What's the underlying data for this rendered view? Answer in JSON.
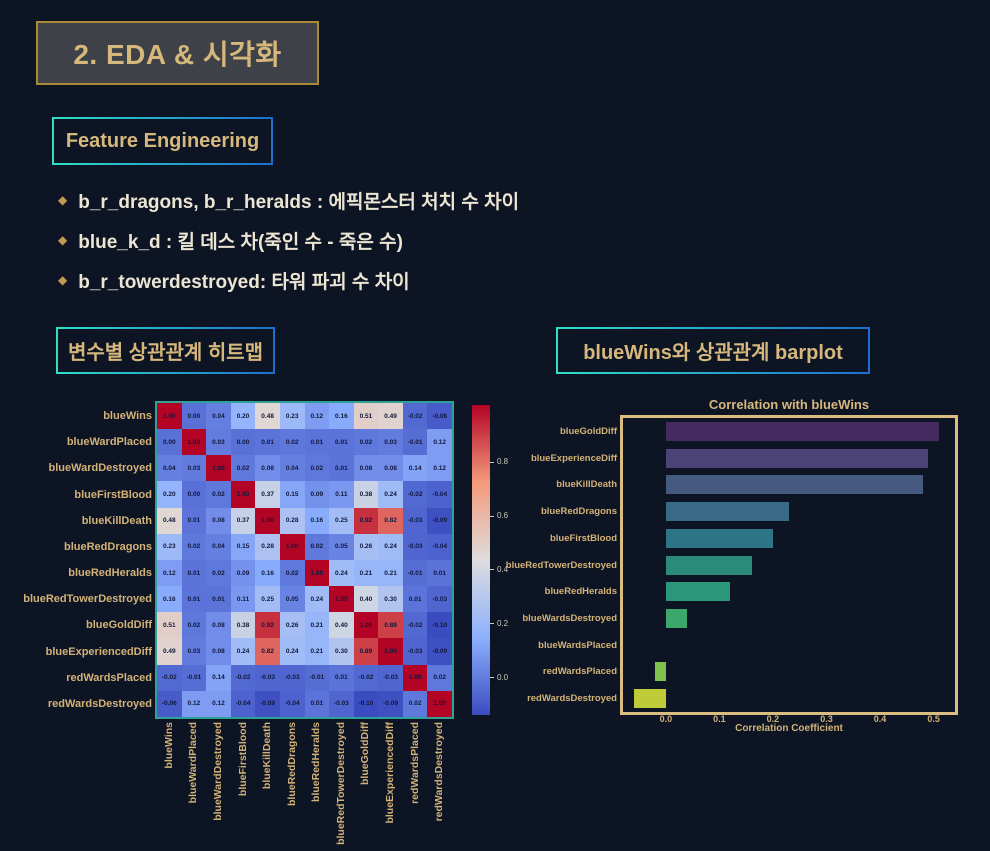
{
  "colors": {
    "background": "#0d1524",
    "gold_text": "#d6b77c",
    "cream_text": "#ece5d3",
    "teal_accent": "#2fe0c6",
    "blue_accent": "#1e6fd0",
    "title_box_bg": "#3e4147",
    "title_box_border": "#ab8a35",
    "heatmap_border": "#2fa195",
    "bar_frame_border": "#dcbd80",
    "cell_text": "#10183a"
  },
  "title": {
    "text": "2. EDA & 시각화"
  },
  "feature_engineering": {
    "label": "Feature Engineering"
  },
  "bullets": [
    {
      "text": "b_r_dragons, b_r_heralds : 에픽몬스터 처치 수 차이"
    },
    {
      "text": "blue_k_d : 킬 데스 차(죽인 수 - 죽은 수)"
    },
    {
      "text": "b_r_towerdestroyed: 타워 파괴 수 차이"
    }
  ],
  "section_headers": {
    "heatmap": "변수별 상관관계 히트맵",
    "barplot": "blueWins와 상관관계 barplot"
  },
  "chart_data": [
    {
      "type": "heatmap",
      "title": "변수별 상관관계 히트맵",
      "labels": [
        "blueWins",
        "blueWardPlaced",
        "blueWardDestroyed",
        "blueFirstBlood",
        "blueKillDeath",
        "blueRedDragons",
        "blueRedHeralds",
        "blueRedTowerDestroyed",
        "blueGoldDiff",
        "blueExperiencedDiff",
        "redWardsPlaced",
        "redWardsDestroyed"
      ],
      "matrix": [
        [
          1.0,
          0.0,
          0.04,
          0.2,
          0.48,
          0.23,
          0.12,
          0.16,
          0.51,
          0.49,
          -0.02,
          -0.06
        ],
        [
          0.0,
          1.0,
          0.03,
          0.0,
          0.01,
          0.02,
          0.01,
          0.01,
          0.02,
          0.03,
          -0.01,
          0.12
        ],
        [
          0.04,
          0.03,
          1.0,
          0.02,
          0.08,
          0.04,
          0.02,
          0.01,
          0.08,
          0.08,
          0.14,
          0.12
        ],
        [
          0.2,
          0.0,
          0.02,
          1.0,
          0.37,
          0.15,
          0.09,
          0.11,
          0.38,
          0.24,
          -0.02,
          -0.04
        ],
        [
          0.48,
          0.01,
          0.08,
          0.37,
          1.0,
          0.28,
          0.16,
          0.25,
          0.92,
          0.82,
          -0.03,
          -0.09
        ],
        [
          0.23,
          0.02,
          0.04,
          0.15,
          0.28,
          1.0,
          0.02,
          0.05,
          0.26,
          0.24,
          -0.03,
          -0.04
        ],
        [
          0.12,
          0.01,
          0.02,
          0.09,
          0.16,
          0.02,
          1.0,
          0.24,
          0.21,
          0.21,
          -0.01,
          0.01
        ],
        [
          0.16,
          0.01,
          0.01,
          0.11,
          0.25,
          0.05,
          0.24,
          1.0,
          0.4,
          0.3,
          0.01,
          -0.03
        ],
        [
          0.51,
          0.02,
          0.08,
          0.38,
          0.92,
          0.26,
          0.21,
          0.4,
          1.0,
          0.89,
          -0.02,
          -0.1
        ],
        [
          0.49,
          0.03,
          0.08,
          0.24,
          0.82,
          0.24,
          0.21,
          0.3,
          0.89,
          1.0,
          -0.03,
          -0.09
        ],
        [
          -0.02,
          -0.01,
          0.14,
          -0.02,
          -0.03,
          -0.03,
          -0.01,
          0.01,
          -0.02,
          -0.03,
          1.0,
          0.02
        ],
        [
          -0.06,
          0.12,
          0.12,
          -0.04,
          -0.09,
          -0.04,
          0.01,
          -0.03,
          -0.1,
          -0.09,
          0.02,
          1.0
        ]
      ],
      "colormap": "coolwarm",
      "vmin": -0.1,
      "vmax": 1.0,
      "colorbar_ticks": [
        0.8,
        0.6,
        0.4,
        0.2,
        0.0
      ]
    },
    {
      "type": "bar",
      "orientation": "horizontal",
      "title": "Correlation with blueWins",
      "xlabel": "Correlation Coefficient",
      "categories": [
        "blueGoldDiff",
        "blueExperienceDiff",
        "blueKillDeath",
        "blueRedDragons",
        "blueFirstBlood",
        "blueRedTowerDestroyed",
        "blueRedHeralds",
        "blueWardsDestroyed",
        "blueWardsPlaced",
        "redWardsPlaced",
        "redWardsDestroyed"
      ],
      "values": [
        0.51,
        0.49,
        0.48,
        0.23,
        0.2,
        0.16,
        0.12,
        0.04,
        0.0,
        -0.02,
        -0.06
      ],
      "colors": [
        "#45295f",
        "#4c4378",
        "#455a7f",
        "#386a85",
        "#2d7486",
        "#2b8b78",
        "#2c9678",
        "#3ca76c",
        "#56c05d",
        "#7ec34e",
        "#c0cb39"
      ],
      "xticks": [
        0.0,
        0.1,
        0.2,
        0.3,
        0.4,
        0.5
      ],
      "xlim": [
        -0.08,
        0.54
      ],
      "grid": false,
      "legend": false
    }
  ]
}
